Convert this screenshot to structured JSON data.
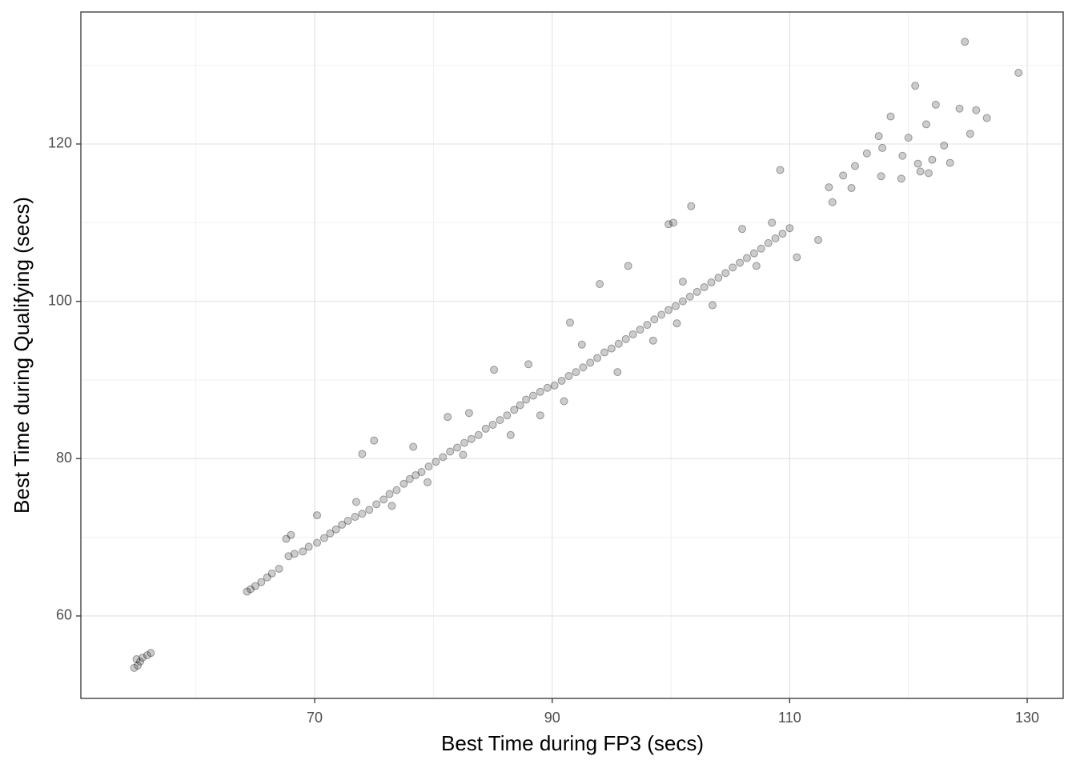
{
  "chart_data": {
    "type": "scatter",
    "x_label": "Best Time during FP3 (secs)",
    "y_label": "Best Time during Qualifying (secs)",
    "xlim": [
      50.31,
      133.03
    ],
    "ylim": [
      49.52,
      136.78
    ],
    "xticks": [
      70,
      90,
      110,
      130
    ],
    "yticks": [
      60,
      80,
      100,
      120
    ],
    "x_minor_grid": [
      60,
      80,
      100,
      120
    ],
    "y_minor_grid": [
      70,
      90,
      110,
      130
    ],
    "grid": true,
    "color": "#000000",
    "x": [
      64.3,
      64.6,
      65.0,
      65.5,
      66.0,
      66.4,
      67.0,
      67.8,
      68.3,
      69.0,
      69.5,
      70.2,
      70.8,
      71.3,
      71.8,
      72.3,
      72.8,
      73.4,
      74.0,
      74.6,
      75.2,
      75.8,
      76.3,
      76.9,
      77.5,
      78.0,
      78.5,
      79.0,
      79.6,
      80.2,
      80.8,
      81.4,
      82.0,
      82.6,
      83.2,
      83.8,
      84.4,
      85.0,
      85.6,
      86.2,
      86.8,
      87.3,
      87.8,
      88.4,
      89.0,
      89.6,
      90.2,
      90.8,
      91.4,
      92.0,
      92.6,
      93.2,
      93.8,
      94.4,
      95.0,
      95.6,
      96.2,
      96.8,
      97.4,
      98.0,
      98.6,
      99.2,
      99.8,
      100.4,
      101.0,
      101.6,
      102.2,
      102.8,
      103.4,
      104.0,
      104.6,
      105.2,
      105.8,
      106.4,
      107.0,
      107.6,
      108.2,
      108.8,
      109.4,
      110.0,
      67.6,
      68.0,
      70.2,
      73.5,
      76.5,
      78.3,
      79.5,
      81.2,
      82.5,
      83.0,
      86.5,
      88.0,
      89.0,
      91.0,
      92.5,
      95.5,
      98.5,
      100.5,
      101.0,
      103.5,
      106.0,
      107.2,
      108.5,
      113.3,
      113.6,
      114.5,
      115.5,
      116.5,
      117.8,
      118.5,
      119.5,
      120.0,
      120.8,
      121.5,
      122.0,
      122.3,
      123.0,
      124.3,
      125.7,
      119.4,
      121.0,
      54.8,
      55.1,
      55.3,
      55.5,
      55.9,
      56.2,
      55.0,
      124.75,
      129.27,
      120.57,
      109.2,
      101.7,
      99.8,
      100.2,
      91.5,
      94.0,
      96.4,
      85.1,
      75.0,
      74.0,
      112.4,
      110.6,
      126.6,
      125.2,
      121.7,
      123.5,
      117.5,
      115.2,
      117.7
    ],
    "y": [
      63.1,
      63.4,
      63.8,
      64.3,
      64.9,
      65.4,
      66.0,
      67.6,
      67.9,
      68.2,
      68.8,
      69.3,
      69.9,
      70.5,
      71.0,
      71.6,
      72.1,
      72.6,
      73.0,
      73.5,
      74.2,
      74.8,
      75.5,
      76.0,
      76.8,
      77.4,
      77.9,
      78.3,
      79.0,
      79.6,
      80.2,
      80.9,
      81.4,
      82.0,
      82.5,
      83.0,
      83.8,
      84.3,
      84.9,
      85.5,
      86.2,
      86.8,
      87.5,
      88.0,
      88.5,
      89.0,
      89.3,
      89.9,
      90.5,
      91.0,
      91.6,
      92.2,
      92.8,
      93.5,
      94.0,
      94.6,
      95.2,
      95.8,
      96.4,
      97.0,
      97.7,
      98.3,
      98.9,
      99.4,
      100.0,
      100.6,
      101.2,
      101.8,
      102.4,
      103.0,
      103.6,
      104.3,
      104.9,
      105.5,
      106.1,
      106.7,
      107.4,
      108.0,
      108.6,
      109.3,
      69.8,
      70.3,
      72.8,
      74.5,
      74.0,
      81.5,
      77.0,
      85.3,
      80.5,
      85.8,
      83.0,
      92.0,
      85.5,
      87.3,
      94.5,
      91.0,
      95.0,
      97.2,
      102.5,
      99.5,
      109.2,
      104.5,
      110.0,
      114.5,
      112.6,
      116.0,
      117.2,
      118.8,
      119.5,
      123.5,
      118.5,
      120.8,
      117.5,
      122.5,
      118.0,
      125.0,
      119.8,
      124.5,
      124.3,
      115.6,
      116.5,
      53.4,
      53.7,
      54.2,
      54.7,
      55.0,
      55.3,
      54.5,
      133.0,
      129.05,
      127.4,
      116.7,
      112.1,
      109.8,
      110.0,
      97.3,
      102.2,
      104.5,
      91.3,
      82.3,
      80.6,
      107.8,
      105.6,
      123.3,
      121.3,
      116.3,
      117.6,
      121.0,
      114.4,
      115.9
    ]
  }
}
